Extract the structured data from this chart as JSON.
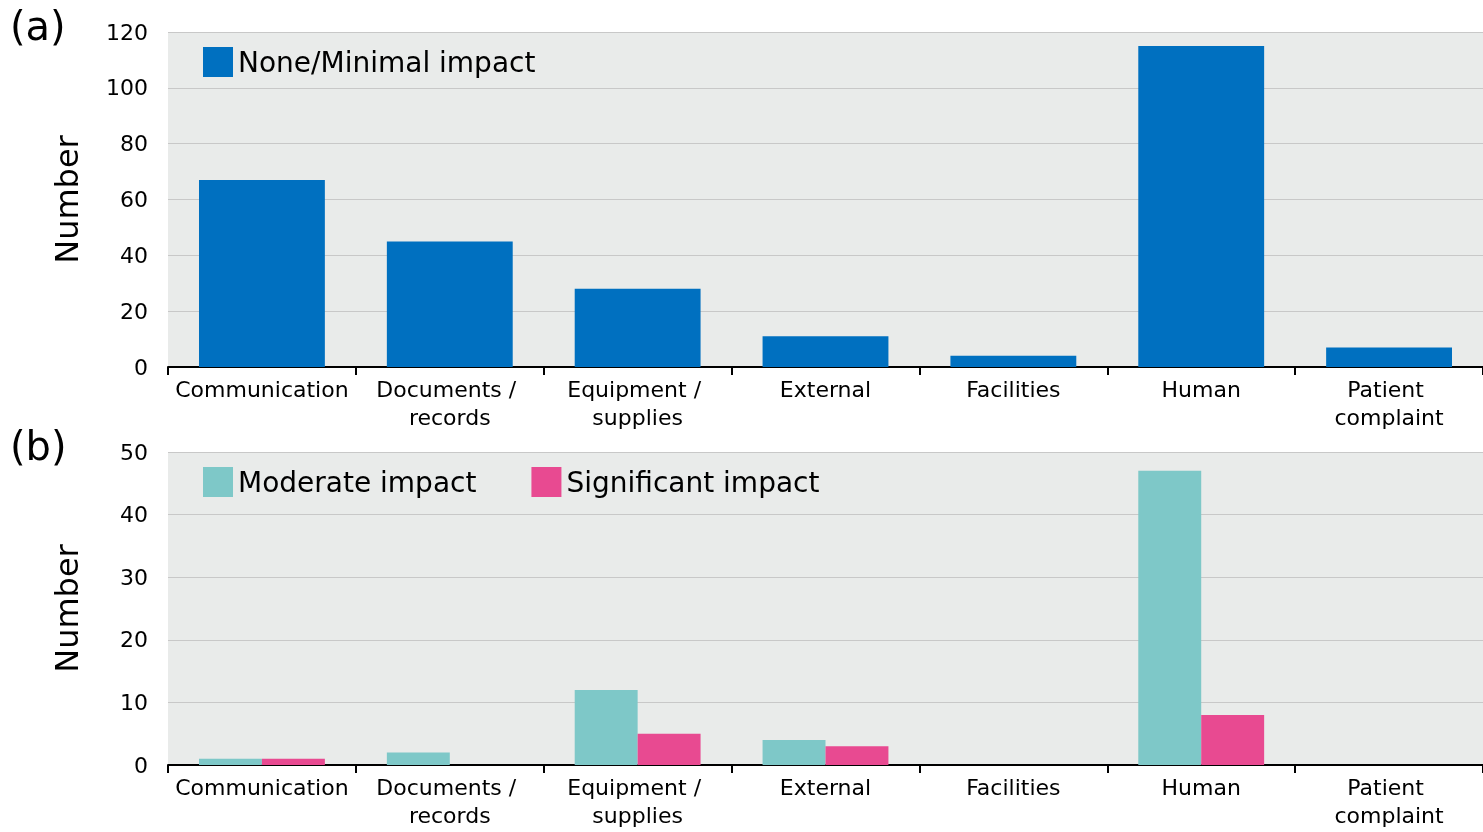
{
  "chart_data": [
    {
      "type": "bar",
      "annotations": [
        "(a)"
      ],
      "ylabel": "Number",
      "categories": [
        "Communication",
        "Documents / records",
        "Equipment / supplies",
        "External",
        "Facilities",
        "Human",
        "Patient complaint"
      ],
      "series": [
        {
          "name": "None/Minimal impact",
          "color": "#0070c0",
          "values": [
            67,
            45,
            28,
            11,
            4,
            115,
            7
          ]
        }
      ],
      "ylim": [
        0,
        120
      ],
      "yticks": [
        0,
        20,
        40,
        60,
        80,
        100,
        120
      ],
      "grid": "y",
      "legend": "top left"
    },
    {
      "type": "bar",
      "annotations": [
        "(b)"
      ],
      "ylabel": "Number",
      "categories": [
        "Communication",
        "Documents / records",
        "Equipment / supplies",
        "External",
        "Facilities",
        "Human",
        "Patient complaint"
      ],
      "series": [
        {
          "name": "Moderate impact",
          "color": "#7ec8c8",
          "values": [
            1,
            2,
            12,
            4,
            0,
            47,
            0
          ]
        },
        {
          "name": "Significant impact",
          "color": "#e84a91",
          "values": [
            1,
            0,
            5,
            3,
            0,
            8,
            0
          ]
        }
      ],
      "ylim": [
        0,
        50
      ],
      "yticks": [
        0,
        10,
        20,
        30,
        40,
        50
      ],
      "grid": "y",
      "legend": "top left"
    }
  ]
}
